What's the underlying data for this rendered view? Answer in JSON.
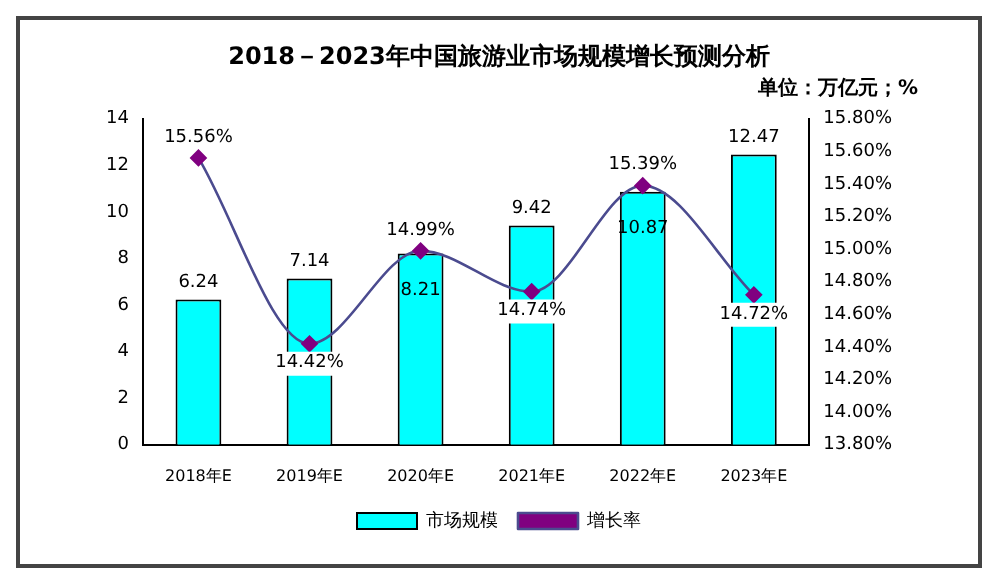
{
  "chart_data": {
    "type": "bar",
    "title": "2018－2023年中国旅游业市场规模增长预测分析",
    "annotations": [
      "单位：万亿元；%"
    ],
    "categories": [
      "2018年E",
      "2019年E",
      "2020年E",
      "2021年E",
      "2022年E",
      "2023年E"
    ],
    "series": [
      {
        "name": "市场规模",
        "color": "#00ffff",
        "values": [
          6.24,
          7.14,
          8.21,
          9.42,
          10.87,
          12.47
        ],
        "value_labels": [
          "6.24",
          "7.14",
          "8.21",
          "9.42",
          "10.87",
          "12.47"
        ]
      },
      {
        "name": "增长率",
        "type": "line",
        "axis": "y2",
        "color": "#800080",
        "values": [
          15.56,
          14.42,
          14.99,
          14.74,
          15.39,
          14.72
        ],
        "value_labels": [
          "15.56%",
          "14.42%",
          "14.99%",
          "14.74%",
          "15.39%",
          "14.72%"
        ]
      }
    ],
    "ylim": [
      0,
      14
    ],
    "yticks": [
      0,
      2,
      4,
      6,
      8,
      10,
      12,
      14
    ],
    "y2lim": [
      13.8,
      15.8
    ],
    "y2ticks": [
      {
        "value": 13.8,
        "label": "13.80%"
      },
      {
        "value": 14,
        "label": "14.00%"
      },
      {
        "value": 14.2,
        "label": "14.20%"
      },
      {
        "value": 14.4,
        "label": "14.40%"
      },
      {
        "value": 14.6,
        "label": "14.60%"
      },
      {
        "value": 14.8,
        "label": "14.80%"
      },
      {
        "value": 15,
        "label": "15.00%"
      },
      {
        "value": 15.2,
        "label": "15.20%"
      },
      {
        "value": 15.4,
        "label": "15.40%"
      },
      {
        "value": 15.6,
        "label": "15.60%"
      },
      {
        "value": 15.8,
        "label": "15.80%"
      }
    ],
    "marker": "diamond",
    "grid": false,
    "legend": "bottom"
  }
}
